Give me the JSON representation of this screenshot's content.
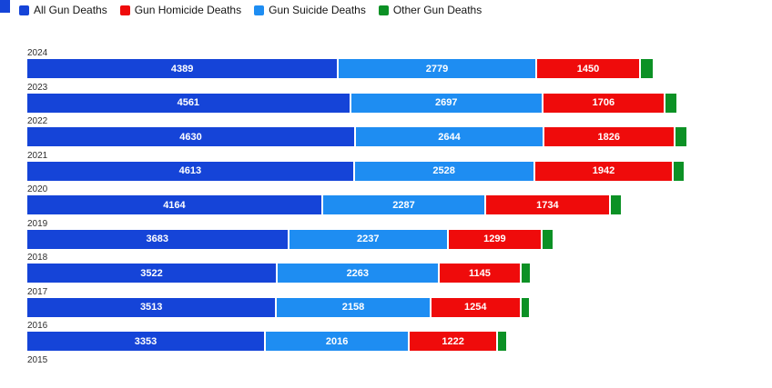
{
  "ui": {
    "background_color": "#ffffff",
    "corner_marker_color": "#1544d8"
  },
  "legend": [
    {
      "label": "All Gun Deaths",
      "color": "#1544d8"
    },
    {
      "label": "Gun Homicide Deaths",
      "color": "#ef0b0b"
    },
    {
      "label": "Gun Suicide Deaths",
      "color": "#1e8df2"
    },
    {
      "label": "Other Gun Deaths",
      "color": "#0c9125"
    }
  ],
  "chart_data": {
    "type": "bar",
    "orientation": "horizontal",
    "stacked": true,
    "title": "",
    "xlabel": "",
    "ylabel": "",
    "legend_position": "top-left",
    "grid": false,
    "categories": [
      "2024",
      "2023",
      "2022",
      "2021",
      "2020",
      "2019",
      "2018",
      "2017",
      "2016",
      "2015"
    ],
    "series": [
      {
        "name": "All Gun Deaths",
        "key": "all-gun-deaths",
        "color": "#1544d8",
        "labels_shown": true,
        "values": [
          4389,
          4561,
          4630,
          4613,
          4164,
          3683,
          3522,
          3513,
          3353,
          null
        ]
      },
      {
        "name": "Gun Suicide Deaths",
        "key": "gun-suicide-deaths",
        "color": "#1e8df2",
        "labels_shown": true,
        "values": [
          2779,
          2697,
          2644,
          2528,
          2287,
          2237,
          2263,
          2158,
          2016,
          null
        ]
      },
      {
        "name": "Gun Homicide Deaths",
        "key": "gun-homicide-deaths",
        "color": "#ef0b0b",
        "labels_shown": true,
        "values": [
          1450,
          1706,
          1826,
          1942,
          1734,
          1299,
          1145,
          1254,
          1222,
          null
        ]
      },
      {
        "name": "Other Gun Deaths",
        "key": "other-gun-deaths",
        "color": "#0c9125",
        "labels_shown": false,
        "values": [
          160,
          158,
          160,
          143,
          143,
          147,
          114,
          101,
          115,
          null
        ],
        "note": "values estimated from unlabeled segment widths"
      }
    ],
    "notes": "Bottom row (2015) year label visible but its bar is cut off by the viewport edge."
  }
}
